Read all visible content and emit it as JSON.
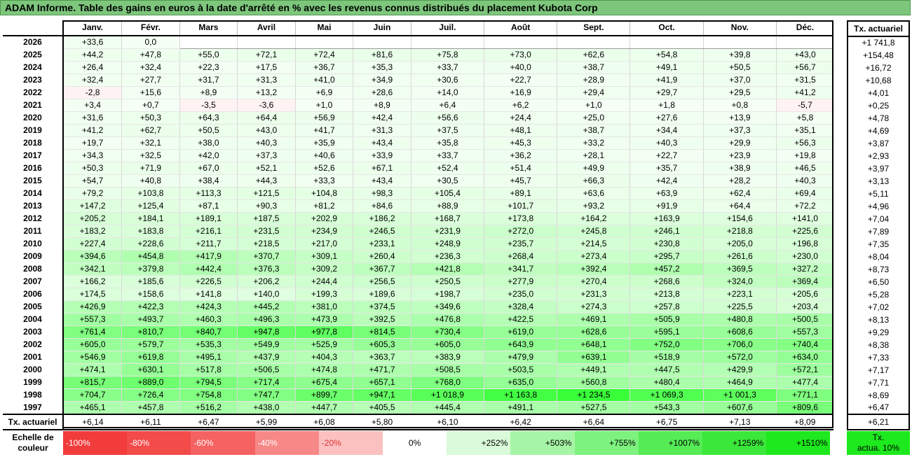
{
  "title": "ADAM Informe. Table des gains en euros à la date d'arrêté en % avec les revenus connus distribués du placement Kubota Corp",
  "months": [
    "Janv.",
    "Févr.",
    "Mars",
    "Avril",
    "Mai",
    "Juin",
    "Juil.",
    "Août",
    "Sept.",
    "Oct.",
    "Nov.",
    "Déc."
  ],
  "tx_header": "Tx. actuariel",
  "rows": [
    {
      "year": "2026",
      "v": [
        "+33,6",
        "0,0",
        "",
        "",
        "",
        "",
        "",
        "",
        "",
        "",
        "",
        ""
      ],
      "tx": "+1 741,8"
    },
    {
      "year": "2025",
      "v": [
        "+44,2",
        "+47,8",
        "+55,0",
        "+72,1",
        "+72,4",
        "+81,6",
        "+75,8",
        "+73,0",
        "+62,6",
        "+54,8",
        "+39,8",
        "+43,0"
      ],
      "tx": "+154,48"
    },
    {
      "year": "2024",
      "v": [
        "+26,4",
        "+32,4",
        "+22,3",
        "+17,5",
        "+36,7",
        "+35,3",
        "+33,7",
        "+40,0",
        "+38,7",
        "+49,1",
        "+50,5",
        "+56,7"
      ],
      "tx": "+16,72"
    },
    {
      "year": "2023",
      "v": [
        "+32,4",
        "+27,7",
        "+31,7",
        "+31,3",
        "+41,0",
        "+34,9",
        "+30,6",
        "+22,7",
        "+28,9",
        "+41,9",
        "+37,0",
        "+31,5"
      ],
      "tx": "+10,68"
    },
    {
      "year": "2022",
      "v": [
        "-2,8",
        "+15,6",
        "+8,9",
        "+13,2",
        "+6,9",
        "+28,6",
        "+14,0",
        "+16,9",
        "+29,4",
        "+29,7",
        "+29,5",
        "+41,2"
      ],
      "tx": "+4,01"
    },
    {
      "year": "2021",
      "v": [
        "+3,4",
        "+0,7",
        "-3,5",
        "-3,6",
        "+1,0",
        "+8,9",
        "+6,4",
        "+6,2",
        "+1,0",
        "+1,8",
        "+0,8",
        "-5,7"
      ],
      "tx": "+0,25"
    },
    {
      "year": "2020",
      "v": [
        "+31,6",
        "+50,3",
        "+64,3",
        "+64,4",
        "+56,9",
        "+42,4",
        "+56,6",
        "+24,4",
        "+25,0",
        "+27,6",
        "+13,9",
        "+5,8"
      ],
      "tx": "+4,78"
    },
    {
      "year": "2019",
      "v": [
        "+41,2",
        "+62,7",
        "+50,5",
        "+43,0",
        "+41,7",
        "+31,3",
        "+37,5",
        "+48,1",
        "+38,7",
        "+34,4",
        "+37,3",
        "+35,1"
      ],
      "tx": "+4,69"
    },
    {
      "year": "2018",
      "v": [
        "+19,7",
        "+32,1",
        "+38,0",
        "+40,3",
        "+35,9",
        "+43,4",
        "+35,8",
        "+45,3",
        "+33,2",
        "+40,3",
        "+29,9",
        "+56,3"
      ],
      "tx": "+3,87"
    },
    {
      "year": "2017",
      "v": [
        "+34,3",
        "+32,5",
        "+42,0",
        "+37,3",
        "+40,6",
        "+33,9",
        "+33,7",
        "+36,2",
        "+28,1",
        "+22,7",
        "+23,9",
        "+19,8"
      ],
      "tx": "+2,93"
    },
    {
      "year": "2016",
      "v": [
        "+50,3",
        "+71,9",
        "+67,0",
        "+52,1",
        "+52,6",
        "+67,1",
        "+52,4",
        "+51,4",
        "+49,9",
        "+35,7",
        "+38,9",
        "+46,5"
      ],
      "tx": "+3,97"
    },
    {
      "year": "2015",
      "v": [
        "+54,7",
        "+40,8",
        "+38,4",
        "+44,3",
        "+33,3",
        "+43,4",
        "+30,5",
        "+45,7",
        "+66,3",
        "+42,4",
        "+28,2",
        "+40,3"
      ],
      "tx": "+3,13"
    },
    {
      "year": "2014",
      "v": [
        "+79,2",
        "+103,8",
        "+113,3",
        "+121,5",
        "+104,8",
        "+98,3",
        "+105,4",
        "+89,1",
        "+63,6",
        "+63,9",
        "+62,4",
        "+69,4"
      ],
      "tx": "+5,11"
    },
    {
      "year": "2013",
      "v": [
        "+147,2",
        "+125,4",
        "+87,1",
        "+90,3",
        "+81,2",
        "+84,6",
        "+88,9",
        "+101,7",
        "+93,2",
        "+91,9",
        "+64,4",
        "+72,2"
      ],
      "tx": "+4,96"
    },
    {
      "year": "2012",
      "v": [
        "+205,2",
        "+184,1",
        "+189,1",
        "+187,5",
        "+202,9",
        "+186,2",
        "+168,7",
        "+173,8",
        "+164,2",
        "+163,9",
        "+154,6",
        "+141,0"
      ],
      "tx": "+7,04"
    },
    {
      "year": "2011",
      "v": [
        "+183,2",
        "+183,8",
        "+216,1",
        "+231,5",
        "+234,9",
        "+246,5",
        "+231,9",
        "+272,0",
        "+245,8",
        "+246,1",
        "+218,8",
        "+225,6"
      ],
      "tx": "+7,89"
    },
    {
      "year": "2010",
      "v": [
        "+227,4",
        "+228,6",
        "+211,7",
        "+218,5",
        "+217,0",
        "+233,1",
        "+248,9",
        "+235,7",
        "+214,5",
        "+230,8",
        "+205,0",
        "+196,8"
      ],
      "tx": "+7,35"
    },
    {
      "year": "2009",
      "v": [
        "+394,6",
        "+454,8",
        "+417,9",
        "+370,7",
        "+309,1",
        "+260,4",
        "+236,3",
        "+268,4",
        "+273,4",
        "+295,7",
        "+261,6",
        "+230,0"
      ],
      "tx": "+8,04"
    },
    {
      "year": "2008",
      "v": [
        "+342,1",
        "+379,8",
        "+442,4",
        "+376,3",
        "+309,2",
        "+367,7",
        "+421,8",
        "+341,7",
        "+392,4",
        "+457,2",
        "+369,5",
        "+327,2"
      ],
      "tx": "+8,73"
    },
    {
      "year": "2007",
      "v": [
        "+166,2",
        "+185,6",
        "+226,5",
        "+206,2",
        "+244,4",
        "+256,5",
        "+250,5",
        "+277,9",
        "+270,4",
        "+268,6",
        "+324,0",
        "+369,4"
      ],
      "tx": "+6,50"
    },
    {
      "year": "2006",
      "v": [
        "+174,5",
        "+158,6",
        "+141,8",
        "+140,0",
        "+199,3",
        "+189,6",
        "+198,7",
        "+235,0",
        "+231,3",
        "+213,8",
        "+223,1",
        "+205,6"
      ],
      "tx": "+5,28"
    },
    {
      "year": "2005",
      "v": [
        "+426,9",
        "+422,3",
        "+424,3",
        "+445,2",
        "+381,0",
        "+374,5",
        "+349,6",
        "+328,4",
        "+274,3",
        "+257,8",
        "+225,5",
        "+203,4"
      ],
      "tx": "+7,02"
    },
    {
      "year": "2004",
      "v": [
        "+557,3",
        "+493,7",
        "+460,3",
        "+496,3",
        "+473,9",
        "+392,5",
        "+476,8",
        "+422,5",
        "+469,1",
        "+505,9",
        "+480,8",
        "+500,5"
      ],
      "tx": "+8,13"
    },
    {
      "year": "2003",
      "v": [
        "+761,4",
        "+810,7",
        "+840,7",
        "+947,8",
        "+977,8",
        "+814,5",
        "+730,4",
        "+619,0",
        "+628,6",
        "+595,1",
        "+608,6",
        "+557,3"
      ],
      "tx": "+9,29"
    },
    {
      "year": "2002",
      "v": [
        "+605,0",
        "+579,7",
        "+535,3",
        "+549,9",
        "+525,9",
        "+605,3",
        "+605,0",
        "+643,9",
        "+648,1",
        "+752,0",
        "+706,0",
        "+740,4"
      ],
      "tx": "+8,38"
    },
    {
      "year": "2001",
      "v": [
        "+546,9",
        "+619,8",
        "+495,1",
        "+437,9",
        "+404,3",
        "+363,7",
        "+383,9",
        "+479,9",
        "+639,1",
        "+518,9",
        "+572,0",
        "+634,0"
      ],
      "tx": "+7,33"
    },
    {
      "year": "2000",
      "v": [
        "+474,1",
        "+630,1",
        "+517,8",
        "+506,5",
        "+474,8",
        "+471,7",
        "+508,5",
        "+503,5",
        "+449,1",
        "+447,5",
        "+429,9",
        "+572,1"
      ],
      "tx": "+7,17"
    },
    {
      "year": "1999",
      "v": [
        "+815,7",
        "+889,0",
        "+794,5",
        "+717,4",
        "+675,4",
        "+657,1",
        "+768,0",
        "+635,0",
        "+560,8",
        "+480,4",
        "+464,9",
        "+477,4"
      ],
      "tx": "+7,71"
    },
    {
      "year": "1998",
      "v": [
        "+704,7",
        "+726,4",
        "+754,8",
        "+747,7",
        "+899,7",
        "+947,1",
        "+1 018,9",
        "+1 163,8",
        "+1 234,5",
        "+1 069,3",
        "+1 001,3",
        "+771,1"
      ],
      "tx": "+8,69"
    },
    {
      "year": "1997",
      "v": [
        "+465,1",
        "+457,8",
        "+516,2",
        "+438,0",
        "+447,7",
        "+405,5",
        "+445,4",
        "+491,1",
        "+527,5",
        "+543,3",
        "+607,6",
        "+809,6"
      ],
      "tx": "+6,47"
    }
  ],
  "footer": {
    "label": "Tx. actuariel",
    "v": [
      "+6,14",
      "+6,11",
      "+6,47",
      "+5,99",
      "+6,08",
      "+5,80",
      "+6,10",
      "+6,42",
      "+6,64",
      "+6,75",
      "+7,13",
      "+8,09"
    ],
    "tx": "+6,21"
  },
  "legend": {
    "label_line1": "Echelle de",
    "label_line2": "couleur",
    "cells": [
      {
        "label": "-100%",
        "color": "#f23b3b"
      },
      {
        "label": "-80%",
        "color": "#f34a4a"
      },
      {
        "label": "-60%",
        "color": "#f56262"
      },
      {
        "label": "-40%",
        "color": "#f78888"
      },
      {
        "label": "-20%",
        "color": "#fbc0c0"
      },
      {
        "label": "0%",
        "color": "#ffffff"
      },
      {
        "label": "+252%",
        "color": "#d9fbd9"
      },
      {
        "label": "+503%",
        "color": "#a6f5a6"
      },
      {
        "label": "+755%",
        "color": "#7ef27e"
      },
      {
        "label": "+1007%",
        "color": "#55ec55"
      },
      {
        "label": "+1259%",
        "color": "#3ae73a"
      },
      {
        "label": "+1510%",
        "color": "#1ee81e"
      }
    ],
    "tx_line1": "Tx.",
    "tx_line2": "actua. 10%"
  }
}
